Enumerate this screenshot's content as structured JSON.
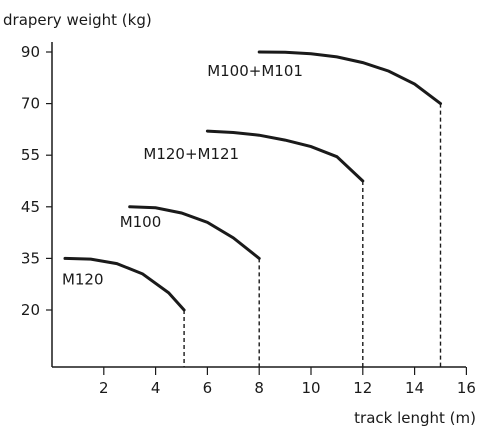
{
  "chart_data": {
    "type": "line",
    "ylabel": "drapery weight (kg)",
    "xlabel": "track lenght (m)",
    "x_ticks": [
      2,
      4,
      6,
      8,
      10,
      12,
      14,
      16
    ],
    "y_ticks": [
      20,
      35,
      45,
      55,
      70,
      90
    ],
    "xlim": [
      0,
      16
    ],
    "grid": false,
    "series": [
      {
        "name": "M120",
        "x": [
          0.5,
          1.5,
          2.5,
          3.5,
          4.5,
          5.1
        ],
        "y": [
          35,
          34.8,
          33.5,
          30.5,
          25,
          20
        ]
      },
      {
        "name": "M100",
        "x": [
          3,
          4,
          5,
          6,
          7,
          8
        ],
        "y": [
          45,
          44.8,
          43.8,
          42,
          39,
          35
        ]
      },
      {
        "name": "M120+M121",
        "x": [
          6,
          7,
          8,
          9,
          10,
          11,
          12
        ],
        "y": [
          62,
          61.6,
          60.8,
          59.4,
          57.5,
          54.7,
          50
        ]
      },
      {
        "name": "M100+M101",
        "x": [
          8,
          9,
          10,
          11,
          12,
          13,
          14,
          15
        ],
        "y": [
          90,
          89.9,
          89.3,
          88.1,
          85.9,
          82.6,
          77.6,
          70
        ]
      }
    ]
  }
}
